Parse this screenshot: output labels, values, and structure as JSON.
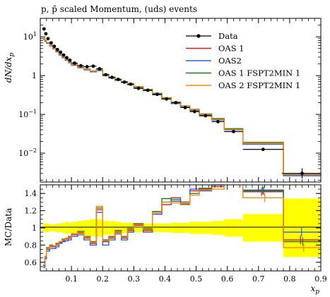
{
  "title": "p, p̄ scaled Momentum, (uds) events",
  "chart_data": [
    {
      "type": "line",
      "panel": "main",
      "ylabel": "dN/dx_p",
      "yscale": "log",
      "ylim": [
        0.0018,
        30
      ],
      "xlim": [
        0.0,
        0.9
      ],
      "y_tick_labels": [
        "10^-2",
        "10^-1",
        "1",
        "10^1"
      ],
      "legend_position": "top-right",
      "data": {
        "name": "Data",
        "x": [
          0.012,
          0.018,
          0.025,
          0.035,
          0.045,
          0.055,
          0.065,
          0.075,
          0.085,
          0.095,
          0.11,
          0.13,
          0.15,
          0.17,
          0.19,
          0.21,
          0.23,
          0.25,
          0.27,
          0.29,
          0.315,
          0.345,
          0.375,
          0.405,
          0.435,
          0.465,
          0.495,
          0.53,
          0.57,
          0.62,
          0.715,
          0.84
        ],
        "y": [
          16,
          12,
          9,
          7,
          5.7,
          4.7,
          4.0,
          3.4,
          2.9,
          2.5,
          2.1,
          1.8,
          1.7,
          1.75,
          1.5,
          1.05,
          0.9,
          0.8,
          0.68,
          0.6,
          0.47,
          0.42,
          0.33,
          0.25,
          0.2,
          0.15,
          0.118,
          0.092,
          0.065,
          0.036,
          0.0125,
          0.003
        ],
        "x_err_lo": [
          0.003,
          0.003,
          0.005,
          0.005,
          0.005,
          0.005,
          0.005,
          0.005,
          0.005,
          0.005,
          0.01,
          0.01,
          0.01,
          0.01,
          0.01,
          0.01,
          0.01,
          0.01,
          0.01,
          0.01,
          0.015,
          0.015,
          0.015,
          0.015,
          0.015,
          0.015,
          0.015,
          0.02,
          0.02,
          0.03,
          0.065,
          0.065
        ],
        "x_err_hi": [
          0.003,
          0.003,
          0.005,
          0.005,
          0.005,
          0.005,
          0.005,
          0.005,
          0.005,
          0.005,
          0.01,
          0.01,
          0.01,
          0.01,
          0.01,
          0.01,
          0.01,
          0.01,
          0.01,
          0.01,
          0.015,
          0.015,
          0.015,
          0.015,
          0.015,
          0.015,
          0.015,
          0.02,
          0.02,
          0.03,
          0.065,
          0.065
        ]
      },
      "bin_edges": [
        0.009,
        0.015,
        0.02,
        0.03,
        0.04,
        0.05,
        0.06,
        0.07,
        0.08,
        0.09,
        0.1,
        0.12,
        0.14,
        0.16,
        0.18,
        0.2,
        0.22,
        0.24,
        0.26,
        0.28,
        0.3,
        0.33,
        0.36,
        0.39,
        0.42,
        0.45,
        0.48,
        0.51,
        0.55,
        0.59,
        0.65,
        0.78,
        0.9
      ],
      "series": [
        {
          "name": "OAS 1",
          "color": "#e8141c",
          "values": [
            9.0,
            8.0,
            7.0,
            6.0,
            5.0,
            4.2,
            3.5,
            3.0,
            2.6,
            2.2,
            1.9,
            1.65,
            1.45,
            1.3,
            1.4,
            1.05,
            0.9,
            0.78,
            0.68,
            0.6,
            0.5,
            0.42,
            0.33,
            0.26,
            0.2,
            0.16,
            0.13,
            0.1,
            0.075,
            0.042,
            0.018,
            0.0028
          ]
        },
        {
          "name": "OAS2",
          "color": "#2a60e8",
          "values": [
            8.6,
            7.7,
            6.8,
            5.8,
            4.9,
            4.1,
            3.4,
            2.9,
            2.5,
            2.15,
            1.85,
            1.6,
            1.4,
            1.25,
            1.35,
            1.0,
            0.87,
            0.75,
            0.66,
            0.58,
            0.48,
            0.41,
            0.32,
            0.25,
            0.19,
            0.155,
            0.125,
            0.097,
            0.072,
            0.04,
            0.017,
            0.0026
          ]
        },
        {
          "name": "OAS 1 FSPT2MIN 1",
          "color": "#1e7a1e",
          "values": [
            9.2,
            8.2,
            7.1,
            6.1,
            5.1,
            4.3,
            3.6,
            3.05,
            2.65,
            2.25,
            1.95,
            1.68,
            1.48,
            1.33,
            1.45,
            1.08,
            0.92,
            0.8,
            0.7,
            0.62,
            0.52,
            0.44,
            0.35,
            0.27,
            0.21,
            0.165,
            0.135,
            0.103,
            0.078,
            0.043,
            0.019,
            0.0029
          ]
        },
        {
          "name": "OAS 2 FSPT2MIN 1",
          "color": "#f28a0a",
          "values": [
            9.1,
            8.1,
            7.05,
            6.05,
            5.05,
            4.25,
            3.55,
            3.02,
            2.62,
            2.22,
            1.92,
            1.66,
            1.46,
            1.31,
            1.42,
            1.06,
            0.91,
            0.79,
            0.69,
            0.61,
            0.51,
            0.43,
            0.34,
            0.265,
            0.205,
            0.162,
            0.132,
            0.1,
            0.074,
            0.041,
            0.018,
            0.0028
          ]
        }
      ]
    },
    {
      "type": "line",
      "panel": "ratio",
      "ylabel": "MC/Data",
      "xlabel": "x_p",
      "ylim": [
        0.5,
        1.5
      ],
      "xlim": [
        0.0,
        0.9
      ],
      "x_ticks": [
        0.1,
        0.2,
        0.3,
        0.4,
        0.5,
        0.6,
        0.7,
        0.8,
        0.9
      ],
      "y_ticks": [
        0.6,
        0.8,
        1.0,
        1.2,
        1.4
      ],
      "x_tick_labels": [
        "0.1",
        "0.2",
        "0.3",
        "0.4",
        "0.5",
        "0.6",
        "0.7",
        "0.8",
        "0.9"
      ],
      "y_tick_labels": [
        "0.6",
        "0.8",
        "1",
        "1.2",
        "1.4"
      ],
      "band": {
        "name": "Data uncertainty",
        "color": "#ffff00",
        "half_width": [
          0.05,
          0.05,
          0.05,
          0.04,
          0.04,
          0.05,
          0.05,
          0.06,
          0.07,
          0.06,
          0.07,
          0.08,
          0.09,
          0.1,
          0.1,
          0.08,
          0.08,
          0.07,
          0.06,
          0.06,
          0.05,
          0.05,
          0.05,
          0.05,
          0.06,
          0.06,
          0.07,
          0.07,
          0.08,
          0.1,
          0.16,
          0.34
        ]
      },
      "bin_edges": [
        0.009,
        0.015,
        0.02,
        0.03,
        0.04,
        0.05,
        0.06,
        0.07,
        0.08,
        0.09,
        0.1,
        0.12,
        0.14,
        0.16,
        0.18,
        0.2,
        0.22,
        0.24,
        0.26,
        0.28,
        0.3,
        0.33,
        0.36,
        0.39,
        0.42,
        0.45,
        0.48,
        0.51,
        0.55,
        0.59,
        0.65,
        0.78,
        0.9
      ],
      "series": [
        {
          "name": "OAS 1",
          "color": "#e8141c",
          "values": [
            0.56,
            0.66,
            0.75,
            0.78,
            0.78,
            0.8,
            0.83,
            0.85,
            0.87,
            0.88,
            0.92,
            0.94,
            0.88,
            0.82,
            1.21,
            0.84,
            0.88,
            0.95,
            0.88,
            0.97,
            1.03,
            0.97,
            1.16,
            1.27,
            1.35,
            1.3,
            1.43,
            1.45,
            1.48,
            1.6,
            1.42,
            0.86
          ]
        },
        {
          "name": "OAS2",
          "color": "#2a60e8",
          "values": [
            0.54,
            0.64,
            0.73,
            0.76,
            0.76,
            0.78,
            0.82,
            0.84,
            0.85,
            0.86,
            0.9,
            0.92,
            0.86,
            0.8,
            1.18,
            0.8,
            0.86,
            0.93,
            0.86,
            0.95,
            1.01,
            0.95,
            1.16,
            1.3,
            1.33,
            1.27,
            1.45,
            1.43,
            1.5,
            1.6,
            1.44,
            0.95
          ]
        },
        {
          "name": "OAS 1 FSPT2MIN 1",
          "color": "#1e7a1e",
          "values": [
            0.57,
            0.67,
            0.77,
            0.8,
            0.79,
            0.82,
            0.84,
            0.87,
            0.88,
            0.9,
            0.93,
            0.96,
            0.9,
            0.84,
            1.23,
            0.86,
            0.9,
            0.97,
            0.9,
            0.99,
            1.05,
            0.99,
            1.19,
            1.34,
            1.31,
            1.28,
            1.4,
            1.46,
            1.5,
            1.62,
            1.43,
            0.84
          ]
        },
        {
          "name": "OAS 2 FSPT2MIN 1",
          "color": "#f28a0a",
          "values": [
            0.57,
            0.67,
            0.76,
            0.79,
            0.79,
            0.81,
            0.84,
            0.86,
            0.88,
            0.89,
            0.93,
            0.95,
            0.89,
            0.83,
            1.25,
            0.85,
            0.89,
            0.96,
            0.89,
            0.98,
            1.04,
            0.98,
            1.18,
            1.3,
            1.29,
            1.27,
            1.38,
            1.44,
            1.45,
            1.6,
            1.35,
            0.77
          ]
        }
      ]
    }
  ]
}
